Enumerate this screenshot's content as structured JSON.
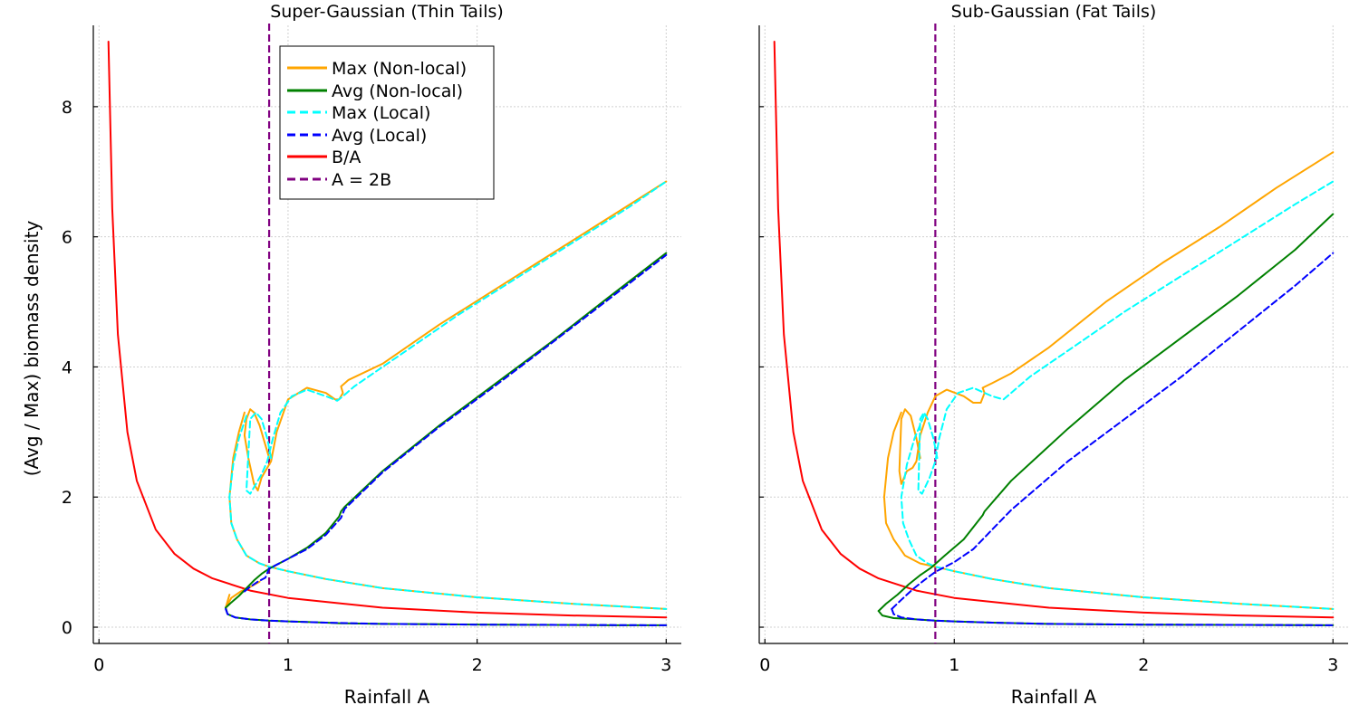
{
  "figure": {
    "ylabel": "(Avg / Max) biomass density",
    "legend": {
      "placement": "top-left",
      "entries": [
        {
          "label": "Max (Non-local)",
          "color": "#FFA500",
          "style": "solid"
        },
        {
          "label": "Avg (Non-local)",
          "color": "#008000",
          "style": "solid"
        },
        {
          "label": "Max (Local)",
          "color": "#00FFFF",
          "style": "dashed"
        },
        {
          "label": "Avg (Local)",
          "color": "#0000FF",
          "style": "dashed"
        },
        {
          "label": "B/A",
          "color": "#FF0000",
          "style": "solid"
        },
        {
          "label": "A = 2B",
          "color": "#800080",
          "style": "dashed"
        }
      ]
    }
  },
  "chart_data": [
    {
      "type": "line",
      "title": "Super-Gaussian (Thin Tails)",
      "xlabel": "Rainfall A",
      "ylabel": "(Avg / Max) biomass density",
      "xlim": [
        -0.03,
        3.08
      ],
      "ylim": [
        -0.25,
        9.25
      ],
      "xticks": [
        "0",
        "1",
        "2",
        "3"
      ],
      "yticks": [
        "0",
        "2",
        "4",
        "6",
        "8"
      ],
      "grid": true,
      "series": [
        {
          "name": "B/A",
          "color": "#FF0000",
          "style": "solid",
          "x": [
            0.05,
            0.07,
            0.1,
            0.15,
            0.2,
            0.3,
            0.4,
            0.5,
            0.6,
            0.8,
            1.0,
            1.5,
            2.0,
            2.5,
            3.0
          ],
          "y": [
            9.0,
            6.43,
            4.5,
            3.0,
            2.25,
            1.5,
            1.125,
            0.9,
            0.75,
            0.5625,
            0.45,
            0.3,
            0.225,
            0.18,
            0.15
          ]
        },
        {
          "name": "A = 2B",
          "color": "#800080",
          "style": "dashed",
          "vline": 0.9
        },
        {
          "name": "Max (Non-local)",
          "color": "#FFA500",
          "style": "solid",
          "x": [
            0.9,
            0.88,
            0.85,
            0.82,
            0.8,
            0.78,
            0.77,
            0.79,
            0.82,
            0.84,
            0.86,
            0.88,
            0.91,
            0.94,
            1.0,
            1.1,
            1.2,
            1.25,
            1.27,
            1.28,
            1.29,
            1.28,
            1.32,
            1.5,
            1.8,
            2.1,
            2.4,
            2.7,
            3.0
          ],
          "y": [
            2.6,
            2.8,
            3.1,
            3.3,
            3.35,
            3.2,
            2.95,
            2.6,
            2.2,
            2.1,
            2.3,
            2.4,
            2.55,
            3.0,
            3.5,
            3.68,
            3.6,
            3.5,
            3.5,
            3.55,
            3.6,
            3.7,
            3.8,
            4.05,
            4.65,
            5.2,
            5.75,
            6.3,
            6.85
          ]
        },
        {
          "name": "Max (Non-local) lower branch",
          "color": "#FFA500",
          "style": "solid",
          "x": [
            0.77,
            0.74,
            0.71,
            0.69,
            0.7,
            0.73,
            0.78,
            0.85,
            0.9,
            1.0,
            1.2,
            1.5,
            2.0,
            2.5,
            3.0
          ],
          "y": [
            3.3,
            3.0,
            2.6,
            2.0,
            1.6,
            1.35,
            1.1,
            0.98,
            0.93,
            0.86,
            0.74,
            0.6,
            0.46,
            0.36,
            0.28
          ]
        },
        {
          "name": "Max (Non-local) bottom fold",
          "color": "#FFA500",
          "style": "solid",
          "x": [
            0.69,
            0.68,
            0.67,
            0.7,
            0.75,
            0.8,
            0.85
          ],
          "y": [
            0.5,
            0.4,
            0.3,
            0.45,
            0.55,
            0.62,
            0.7
          ]
        },
        {
          "name": "Max (Local)",
          "color": "#00FFFF",
          "style": "dashed",
          "x": [
            0.91,
            0.89,
            0.86,
            0.83,
            0.8,
            0.78,
            0.8,
            0.83,
            0.86,
            0.89,
            0.92,
            0.96,
            1.02,
            1.1,
            1.2,
            1.26,
            1.29,
            1.35,
            1.6,
            1.9,
            2.2,
            2.5,
            2.8,
            3.0
          ],
          "y": [
            2.6,
            2.9,
            3.2,
            3.3,
            3.2,
            2.1,
            2.05,
            2.2,
            2.35,
            2.55,
            2.9,
            3.3,
            3.55,
            3.65,
            3.55,
            3.48,
            3.55,
            3.7,
            4.2,
            4.8,
            5.35,
            5.9,
            6.45,
            6.85
          ]
        },
        {
          "name": "Max (Local) lower branch",
          "color": "#00FFFF",
          "style": "dashed",
          "x": [
            0.78,
            0.74,
            0.71,
            0.69,
            0.7,
            0.73,
            0.78,
            0.85,
            0.9,
            1.0,
            1.2,
            1.5,
            2.0,
            2.5,
            3.0
          ],
          "y": [
            3.25,
            2.9,
            2.5,
            2.0,
            1.6,
            1.35,
            1.1,
            0.98,
            0.93,
            0.86,
            0.74,
            0.6,
            0.46,
            0.36,
            0.28
          ]
        },
        {
          "name": "Avg (Non-local)",
          "color": "#008000",
          "style": "solid",
          "x": [
            0.67,
            0.68,
            0.72,
            0.8,
            0.9,
            1.0,
            1.1,
            1.2,
            1.28,
            1.3,
            1.5,
            1.8,
            2.1,
            2.4,
            2.7,
            3.0
          ],
          "y": [
            0.3,
            0.2,
            0.15,
            0.12,
            0.1,
            0.09,
            0.08,
            0.07,
            0.06,
            0.06,
            0.05,
            0.045,
            0.04,
            0.035,
            0.03,
            0.03
          ]
        },
        {
          "name": "Avg (Non-local) upper",
          "color": "#008000",
          "style": "solid",
          "x": [
            0.67,
            0.7,
            0.74,
            0.78,
            0.82,
            0.86,
            0.9,
            1.0,
            1.1,
            1.2,
            1.27,
            1.28,
            1.3,
            1.5,
            1.8,
            2.1,
            2.4,
            2.7,
            3.0
          ],
          "y": [
            0.3,
            0.38,
            0.48,
            0.6,
            0.72,
            0.82,
            0.9,
            1.05,
            1.22,
            1.45,
            1.7,
            1.78,
            1.85,
            2.4,
            3.1,
            3.75,
            4.4,
            5.08,
            5.75
          ]
        },
        {
          "name": "Avg (Local)",
          "color": "#0000FF",
          "style": "dashed",
          "x": [
            0.67,
            0.68,
            0.72,
            0.8,
            0.9,
            1.0,
            1.2,
            1.5,
            2.0,
            2.5,
            3.0
          ],
          "y": [
            0.28,
            0.2,
            0.15,
            0.12,
            0.1,
            0.09,
            0.07,
            0.05,
            0.04,
            0.035,
            0.03
          ]
        },
        {
          "name": "Avg (Local) upper",
          "color": "#0000FF",
          "style": "dashed",
          "x": [
            0.77,
            0.8,
            0.84,
            0.88,
            0.9,
            1.0,
            1.1,
            1.2,
            1.28,
            1.3,
            1.5,
            1.8,
            2.1,
            2.4,
            2.7,
            3.0
          ],
          "y": [
            0.55,
            0.62,
            0.7,
            0.76,
            0.9,
            1.05,
            1.2,
            1.42,
            1.68,
            1.82,
            2.38,
            3.08,
            3.72,
            4.38,
            5.05,
            5.72
          ]
        }
      ]
    },
    {
      "type": "line",
      "title": "Sub-Gaussian (Fat Tails)",
      "xlabel": "Rainfall A",
      "ylabel": "",
      "xlim": [
        -0.03,
        3.08
      ],
      "ylim": [
        -0.25,
        9.25
      ],
      "xticks": [
        "0",
        "1",
        "2",
        "3"
      ],
      "yticks": [],
      "grid": true,
      "series": [
        {
          "name": "B/A",
          "color": "#FF0000",
          "style": "solid",
          "x": [
            0.05,
            0.07,
            0.1,
            0.15,
            0.2,
            0.3,
            0.4,
            0.5,
            0.6,
            0.8,
            1.0,
            1.5,
            2.0,
            2.5,
            3.0
          ],
          "y": [
            9.0,
            6.43,
            4.5,
            3.0,
            2.25,
            1.5,
            1.125,
            0.9,
            0.75,
            0.5625,
            0.45,
            0.3,
            0.225,
            0.18,
            0.15
          ]
        },
        {
          "name": "A = 2B",
          "color": "#800080",
          "style": "dashed",
          "vline": 0.9
        },
        {
          "name": "Max (Non-local)",
          "color": "#FFA500",
          "style": "solid",
          "x": [
            0.82,
            0.8,
            0.77,
            0.74,
            0.72,
            0.71,
            0.72,
            0.75,
            0.78,
            0.8,
            0.82,
            0.86,
            0.9,
            0.96,
            1.05,
            1.1,
            1.14,
            1.16,
            1.15,
            1.2,
            1.3,
            1.5,
            1.8,
            2.1,
            2.4,
            2.7,
            3.0
          ],
          "y": [
            2.6,
            2.9,
            3.25,
            3.35,
            3.2,
            2.4,
            2.2,
            2.4,
            2.45,
            2.55,
            2.95,
            3.3,
            3.55,
            3.65,
            3.55,
            3.45,
            3.45,
            3.6,
            3.68,
            3.75,
            3.9,
            4.3,
            5.0,
            5.6,
            6.15,
            6.75,
            7.3
          ]
        },
        {
          "name": "Max (Non-local) lower branch",
          "color": "#FFA500",
          "style": "solid",
          "x": [
            0.72,
            0.68,
            0.65,
            0.63,
            0.64,
            0.68,
            0.74,
            0.82,
            0.9,
            1.0,
            1.2,
            1.5,
            2.0,
            2.5,
            3.0
          ],
          "y": [
            3.3,
            3.0,
            2.6,
            2.0,
            1.6,
            1.35,
            1.1,
            0.98,
            0.93,
            0.86,
            0.74,
            0.6,
            0.46,
            0.36,
            0.28
          ]
        },
        {
          "name": "Max (Local)",
          "color": "#00FFFF",
          "style": "dashed",
          "x": [
            0.91,
            0.89,
            0.86,
            0.84,
            0.82,
            0.81,
            0.83,
            0.87,
            0.9,
            0.92,
            0.96,
            1.02,
            1.1,
            1.16,
            1.2,
            1.26,
            1.3,
            1.4,
            1.6,
            1.9,
            2.2,
            2.5,
            2.8,
            3.0
          ],
          "y": [
            2.6,
            2.9,
            3.2,
            3.3,
            3.2,
            2.1,
            2.05,
            2.3,
            2.55,
            2.9,
            3.35,
            3.6,
            3.68,
            3.6,
            3.55,
            3.5,
            3.6,
            3.85,
            4.25,
            4.85,
            5.4,
            5.95,
            6.5,
            6.85
          ]
        },
        {
          "name": "Max (Local) lower branch",
          "color": "#00FFFF",
          "style": "dashed",
          "x": [
            0.84,
            0.79,
            0.75,
            0.72,
            0.73,
            0.76,
            0.8,
            0.86,
            0.9,
            1.0,
            1.2,
            1.5,
            2.0,
            2.5,
            3.0
          ],
          "y": [
            3.25,
            2.9,
            2.5,
            2.0,
            1.6,
            1.35,
            1.1,
            0.98,
            0.93,
            0.86,
            0.74,
            0.6,
            0.46,
            0.36,
            0.28
          ]
        },
        {
          "name": "Avg (Non-local)",
          "color": "#008000",
          "style": "solid",
          "x": [
            0.6,
            0.62,
            0.68,
            0.8,
            0.9,
            1.0,
            1.2,
            1.5,
            2.0,
            2.5,
            3.0
          ],
          "y": [
            0.25,
            0.18,
            0.14,
            0.12,
            0.1,
            0.09,
            0.07,
            0.05,
            0.04,
            0.035,
            0.03
          ]
        },
        {
          "name": "Avg (Non-local) upper",
          "color": "#008000",
          "style": "solid",
          "x": [
            0.6,
            0.64,
            0.7,
            0.76,
            0.82,
            0.88,
            0.95,
            1.05,
            1.15,
            1.16,
            1.3,
            1.6,
            1.9,
            2.2,
            2.5,
            2.8,
            3.0
          ],
          "y": [
            0.25,
            0.36,
            0.5,
            0.66,
            0.8,
            0.92,
            1.1,
            1.35,
            1.72,
            1.78,
            2.25,
            3.05,
            3.8,
            4.45,
            5.1,
            5.8,
            6.35
          ]
        },
        {
          "name": "Avg (Local)",
          "color": "#0000FF",
          "style": "dashed",
          "x": [
            0.67,
            0.68,
            0.72,
            0.8,
            0.9,
            1.0,
            1.2,
            1.5,
            2.0,
            2.5,
            3.0
          ],
          "y": [
            0.28,
            0.2,
            0.15,
            0.12,
            0.1,
            0.09,
            0.07,
            0.05,
            0.04,
            0.035,
            0.03
          ]
        },
        {
          "name": "Avg (Local) upper",
          "color": "#0000FF",
          "style": "dashed",
          "x": [
            0.67,
            0.72,
            0.78,
            0.84,
            0.9,
            1.0,
            1.1,
            1.2,
            1.3,
            1.6,
            1.9,
            2.2,
            2.5,
            2.8,
            3.0
          ],
          "y": [
            0.28,
            0.42,
            0.58,
            0.72,
            0.85,
            1.0,
            1.2,
            1.5,
            1.8,
            2.55,
            3.2,
            3.85,
            4.55,
            5.25,
            5.75
          ]
        }
      ]
    }
  ]
}
